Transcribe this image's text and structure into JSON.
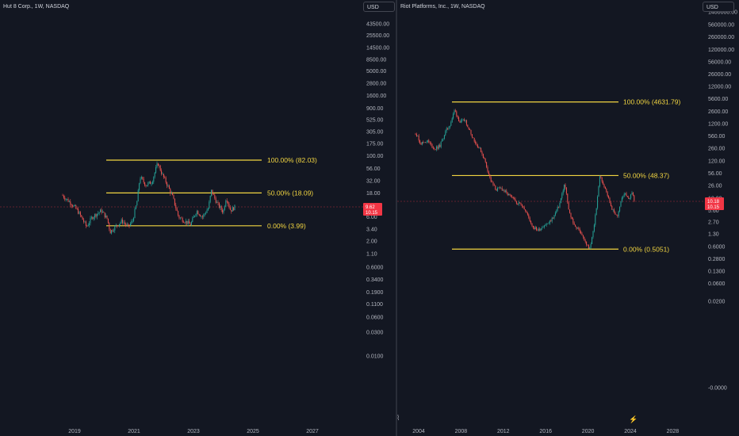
{
  "chart_data": [
    {
      "type": "candlestick",
      "title": "Hut 8 Corp., 1W, NASDAQ",
      "currency": "USD",
      "scale": "log",
      "y_ticks": [
        "43500.00",
        "25500.00",
        "14500.00",
        "8500.00",
        "5000.00",
        "2800.00",
        "1600.00",
        "900.00",
        "525.00",
        "305.00",
        "175.00",
        "100.00",
        "56.00",
        "32.00",
        "18.00",
        "10.00",
        "6.00",
        "3.40",
        "2.00",
        "1.10",
        "0.6000",
        "0.3400",
        "0.1900",
        "0.1100",
        "0.0600",
        "0.0300",
        "0.0100"
      ],
      "x_ticks": [
        "2019",
        "2021",
        "2023",
        "2025",
        "2027"
      ],
      "last_price": "9.62",
      "price_tag_sub": "10.15",
      "fib_levels": [
        {
          "label": "100.00% (82.03)",
          "value": 82.03
        },
        {
          "label": "50.00% (18.09)",
          "value": 18.09
        },
        {
          "label": "0.00% (3.99)",
          "value": 3.99
        }
      ],
      "series_path": [
        [
          2018.6,
          16
        ],
        [
          2018.9,
          11
        ],
        [
          2019.1,
          8
        ],
        [
          2019.3,
          5
        ],
        [
          2019.4,
          3.8
        ],
        [
          2019.6,
          6
        ],
        [
          2019.9,
          8
        ],
        [
          2020.1,
          5.5
        ],
        [
          2020.2,
          3
        ],
        [
          2020.4,
          4
        ],
        [
          2020.6,
          5
        ],
        [
          2020.8,
          3.8
        ],
        [
          2020.95,
          5
        ],
        [
          2021.1,
          12
        ],
        [
          2021.2,
          38
        ],
        [
          2021.4,
          26
        ],
        [
          2021.6,
          30
        ],
        [
          2021.8,
          72
        ],
        [
          2021.95,
          42
        ],
        [
          2022.1,
          28
        ],
        [
          2022.3,
          15
        ],
        [
          2022.5,
          6
        ],
        [
          2022.7,
          5
        ],
        [
          2022.9,
          4.2
        ],
        [
          2023.1,
          8
        ],
        [
          2023.3,
          6
        ],
        [
          2023.5,
          9
        ],
        [
          2023.6,
          20
        ],
        [
          2023.8,
          11
        ],
        [
          2024.0,
          7.5
        ],
        [
          2024.1,
          15
        ],
        [
          2024.25,
          8
        ],
        [
          2024.4,
          9.62
        ]
      ]
    },
    {
      "type": "candlestick",
      "title": "Riot Platforms, Inc., 1W, NASDAQ",
      "currency": "USD",
      "scale": "log",
      "y_ticks": [
        "1400000.00",
        "560000.00",
        "260000.00",
        "120000.00",
        "56000.00",
        "26000.00",
        "12000.00",
        "5600.00",
        "2600.00",
        "1200.00",
        "560.00",
        "260.00",
        "120.00",
        "56.00",
        "26.00",
        "12.00",
        "5.60",
        "2.70",
        "1.30",
        "0.6000",
        "0.2800",
        "0.1300",
        "0.0600",
        "0.0200",
        "-0.0000"
      ],
      "x_ticks": [
        "2004",
        "2008",
        "2012",
        "2016",
        "2020",
        "2024",
        "2028"
      ],
      "last_price": "10.18",
      "price_tag_sub": "10.15",
      "fib_levels": [
        {
          "label": "100.00% (4631.79)",
          "value": 4631.79
        },
        {
          "label": "50.00% (48.37)",
          "value": 48.37
        },
        {
          "label": "0.00% (0.5051)",
          "value": 0.5051
        }
      ],
      "series_path": [
        [
          2003.7,
          700
        ],
        [
          2004.2,
          350
        ],
        [
          2004.8,
          420
        ],
        [
          2005.5,
          250
        ],
        [
          2006.0,
          300
        ],
        [
          2006.5,
          700
        ],
        [
          2007.0,
          1200
        ],
        [
          2007.4,
          2800
        ],
        [
          2007.9,
          1300
        ],
        [
          2008.4,
          1500
        ],
        [
          2008.9,
          700
        ],
        [
          2009.4,
          350
        ],
        [
          2009.9,
          220
        ],
        [
          2010.3,
          110
        ],
        [
          2010.8,
          35
        ],
        [
          2011.3,
          20
        ],
        [
          2011.8,
          22
        ],
        [
          2012.3,
          16
        ],
        [
          2012.8,
          12
        ],
        [
          2013.3,
          9
        ],
        [
          2013.8,
          8
        ],
        [
          2014.3,
          4
        ],
        [
          2014.8,
          2
        ],
        [
          2015.3,
          1.6
        ],
        [
          2015.8,
          2.2
        ],
        [
          2016.3,
          2.5
        ],
        [
          2016.8,
          4
        ],
        [
          2017.3,
          8
        ],
        [
          2017.8,
          30
        ],
        [
          2018.2,
          5
        ],
        [
          2018.8,
          2
        ],
        [
          2019.3,
          1.5
        ],
        [
          2019.8,
          0.7
        ],
        [
          2020.2,
          0.5051
        ],
        [
          2020.6,
          2.5
        ],
        [
          2020.9,
          12
        ],
        [
          2021.1,
          48
        ],
        [
          2021.4,
          30
        ],
        [
          2021.7,
          20
        ],
        [
          2022.0,
          10
        ],
        [
          2022.4,
          5
        ],
        [
          2022.8,
          4
        ],
        [
          2023.2,
          12
        ],
        [
          2023.5,
          18
        ],
        [
          2023.8,
          10
        ],
        [
          2024.1,
          18
        ],
        [
          2024.4,
          10.18
        ]
      ]
    }
  ]
}
